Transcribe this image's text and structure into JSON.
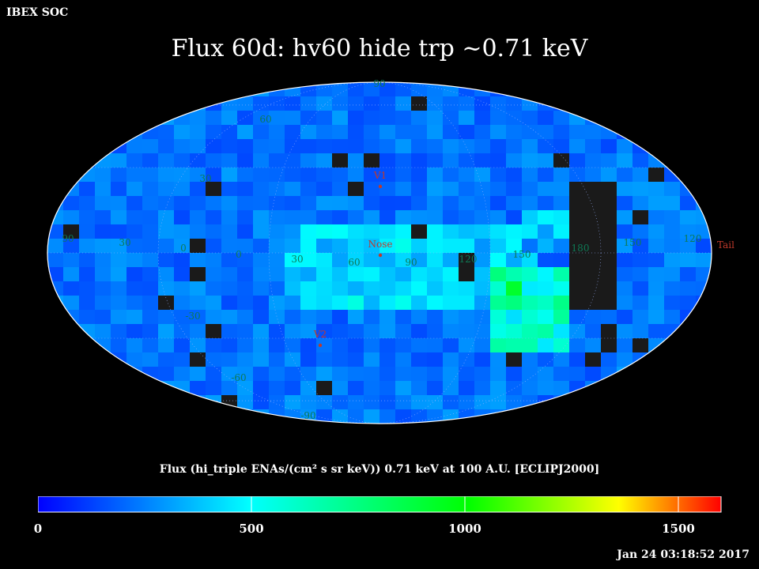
{
  "header": {
    "org": "IBEX SOC",
    "title": "Flux   60d: hv60 hide trp ~0.71 keV",
    "units_label": "Flux (hi_triple ENAs/(cm² s sr keV))  0.71 keV at 100 A.U. [ECLIPJ2000]",
    "timestamp": "Jan 24 03:18:52 2017"
  },
  "markers": [
    {
      "label": "V1"
    },
    {
      "label": "Nose"
    },
    {
      "label": "V2"
    },
    {
      "label": "Tail"
    }
  ],
  "graticule_labels": [
    "90",
    "60",
    "30",
    "0",
    "-30",
    "-60",
    "-90",
    "90",
    "30",
    "0",
    "30",
    "60",
    "90",
    "120",
    "150",
    "180",
    "150",
    "120",
    "90"
  ],
  "colors": {
    "background": "#000000",
    "grid": "#9bb4ff",
    "marker": "#c0392b",
    "graticule_text": "#0e7a55",
    "data_gap": "#1a1a1a"
  },
  "colorbar": {
    "ticks": [
      "0",
      "500",
      "1000",
      "1500"
    ],
    "range": [
      0,
      1600
    ],
    "stops": [
      "#0000ff",
      "#00ffff",
      "#00ff00",
      "#ffff00",
      "#ff0000"
    ]
  },
  "chart_data": {
    "type": "heatmap",
    "projection": "mollweide",
    "frame": "ECLIPJ2000",
    "energy_keV": 0.71,
    "value_range": [
      0,
      1600
    ],
    "regions": [
      {
        "region": "background sky",
        "flux": 220
      },
      {
        "region": "central band near Nose",
        "flux": 480
      },
      {
        "region": "ribbon east of center",
        "flux": 700
      },
      {
        "region": "brightest pixels near tail-side band",
        "flux": 900
      }
    ]
  }
}
